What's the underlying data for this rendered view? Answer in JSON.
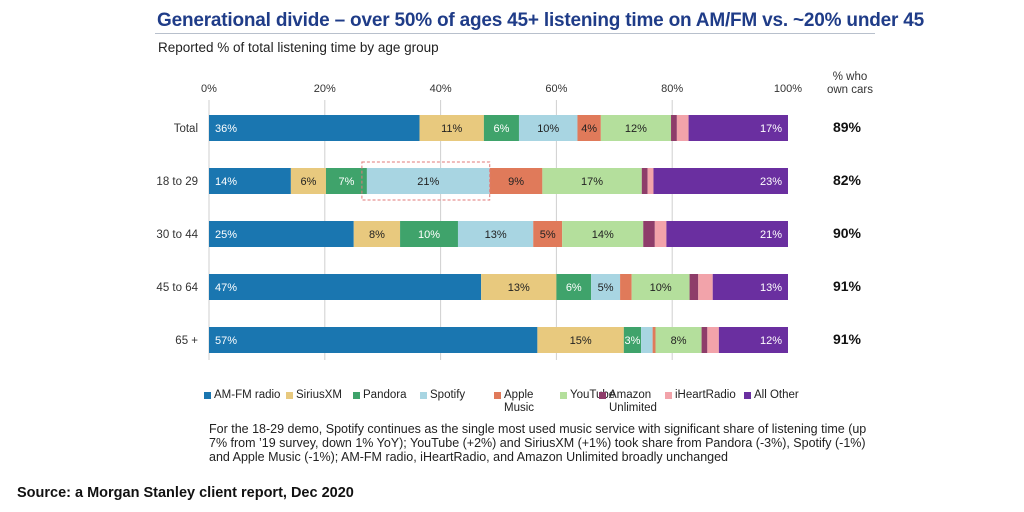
{
  "header": {
    "title": "Generational divide – over 50% of ages 45+ listening time on AM/FM vs. ~20% under 45",
    "subtitle": "Reported % of total listening time by age group"
  },
  "chart_data": {
    "type": "bar",
    "orientation": "horizontal-stacked-100",
    "title": "Generational divide – over 50% of ages 45+ listening time on AM/FM vs. ~20% under 45",
    "subtitle": "Reported % of total listening time by age group",
    "xlabel": "",
    "ylabel": "",
    "xlim": [
      0,
      100
    ],
    "x_ticks": [
      "0%",
      "20%",
      "40%",
      "60%",
      "80%",
      "100%"
    ],
    "grid": true,
    "legend_position": "bottom",
    "categories": [
      "Total",
      "18 to 29",
      "30 to 44",
      "45 to 64",
      "65 +"
    ],
    "series": [
      {
        "name": "AM-FM radio",
        "color": "#1a76b0",
        "label_color": "#ffffff",
        "values": [
          36,
          14,
          25,
          47,
          57
        ],
        "labels": [
          "36%",
          "14%",
          "25%",
          "47%",
          "57%"
        ]
      },
      {
        "name": "SiriusXM",
        "color": "#e8c97e",
        "label_color": "#222222",
        "values": [
          11,
          6,
          8,
          13,
          15
        ],
        "labels": [
          "11%",
          "6%",
          "8%",
          "13%",
          "15%"
        ]
      },
      {
        "name": "Pandora",
        "color": "#3fa36b",
        "label_color": "#ffffff",
        "values": [
          6,
          7,
          10,
          6,
          3
        ],
        "labels": [
          "6%",
          "7%",
          "10%",
          "6%",
          "3%"
        ]
      },
      {
        "name": "Spotify",
        "color": "#a8d5e2",
        "label_color": "#222222",
        "values": [
          10,
          21,
          13,
          5,
          2
        ],
        "labels": [
          "10%",
          "21%",
          "13%",
          "5%",
          ""
        ]
      },
      {
        "name": "Apple Music",
        "color": "#e07a5a",
        "label_color": "#222222",
        "values": [
          4,
          9,
          5,
          2,
          0.5
        ],
        "labels": [
          "4%",
          "9%",
          "5%",
          "",
          ""
        ]
      },
      {
        "name": "YouTube",
        "color": "#b4df9c",
        "label_color": "#222222",
        "values": [
          12,
          17,
          14,
          10,
          8
        ],
        "labels": [
          "12%",
          "17%",
          "14%",
          "10%",
          "8%"
        ]
      },
      {
        "name": "Amazon Unlimited",
        "color": "#8e3d6a",
        "label_color": "#ffffff",
        "values": [
          1,
          1,
          2,
          1.5,
          1
        ],
        "labels": [
          "",
          "",
          "",
          "",
          ""
        ]
      },
      {
        "name": "iHeartRadio",
        "color": "#f2a3aa",
        "label_color": "#222222",
        "values": [
          2,
          1,
          2,
          2.5,
          2
        ],
        "labels": [
          "",
          "",
          "",
          "",
          ""
        ]
      },
      {
        "name": "All Other",
        "color": "#6a2fa0",
        "label_color": "#ffffff",
        "values": [
          17,
          23,
          21,
          13,
          12
        ],
        "labels": [
          "17%",
          "23%",
          "21%",
          "13%",
          "12%"
        ]
      }
    ],
    "side_column": {
      "header": [
        "% who",
        "own cars"
      ],
      "values": [
        "89%",
        "82%",
        "90%",
        "91%",
        "91%"
      ]
    },
    "annotations": [
      {
        "type": "dashed-box",
        "category": "18 to 29",
        "series": "Spotify",
        "color": "#e07a7a"
      }
    ]
  },
  "legend": [
    {
      "label": "AM-FM radio",
      "color": "#1a76b0"
    },
    {
      "label": "SiriusXM",
      "color": "#e8c97e"
    },
    {
      "label": "Pandora",
      "color": "#3fa36b"
    },
    {
      "label": "Spotify",
      "color": "#a8d5e2"
    },
    {
      "label": "Apple\nMusic",
      "color": "#e07a5a"
    },
    {
      "label": "YouTube",
      "color": "#b4df9c"
    },
    {
      "label": "Amazon\nUnlimited",
      "color": "#8e3d6a"
    },
    {
      "label": "iHeartRadio",
      "color": "#f2a3aa"
    },
    {
      "label": "All Other",
      "color": "#6a2fa0"
    }
  ],
  "note": "For the 18-29 demo, Spotify continues as the single most used music service with significant share of listening time (up 7% from ’19 survey, down 1% YoY); YouTube (+2%) and SiriusXM (+1%) took share from Pandora (-3%), Spotify (-1%) and Apple Music (-1%); AM-FM radio, iHeartRadio, and Amazon Unlimited broadly unchanged",
  "source": "Source: a Morgan Stanley client report, Dec 2020"
}
